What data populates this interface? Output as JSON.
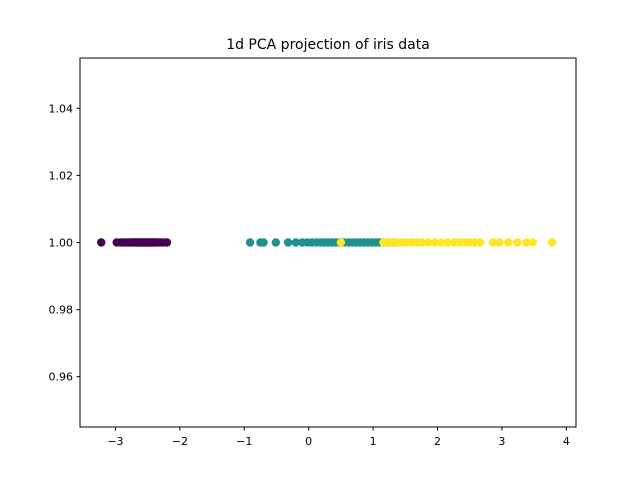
{
  "chart_data": {
    "type": "scatter",
    "title": "1d PCA projection of iris data",
    "xlabel": "",
    "ylabel": "",
    "xlim": [
      -3.55,
      4.15
    ],
    "ylim": [
      0.945,
      1.055
    ],
    "grid": false,
    "legend": "none",
    "x_ticks": [
      -3,
      -2,
      -1,
      0,
      1,
      2,
      3,
      4
    ],
    "x_tick_labels": [
      "−3",
      "−2",
      "−1",
      "0",
      "1",
      "2",
      "3",
      "4"
    ],
    "y_ticks": [
      0.96,
      0.98,
      1.0,
      1.02,
      1.04
    ],
    "y_tick_labels": [
      "0.96",
      "0.98",
      "1.00",
      "1.02",
      "1.04"
    ],
    "series": [
      {
        "color": "#440154",
        "x": [
          -3.22,
          -2.98,
          -2.92,
          -2.88,
          -2.84,
          -2.8,
          -2.76,
          -2.73,
          -2.7,
          -2.68,
          -2.66,
          -2.64,
          -2.62,
          -2.6,
          -2.58,
          -2.56,
          -2.54,
          -2.52,
          -2.5,
          -2.48,
          -2.46,
          -2.44,
          -2.42,
          -2.4,
          -2.37,
          -2.34,
          -2.3,
          -2.26,
          -2.2
        ],
        "y": [
          1,
          1,
          1,
          1,
          1,
          1,
          1,
          1,
          1,
          1,
          1,
          1,
          1,
          1,
          1,
          1,
          1,
          1,
          1,
          1,
          1,
          1,
          1,
          1,
          1,
          1,
          1,
          1,
          1
        ]
      },
      {
        "color": "#21918c",
        "x": [
          -0.91,
          -0.75,
          -0.7,
          -0.51,
          -0.32,
          -0.2,
          -0.1,
          -0.02,
          0.05,
          0.12,
          0.18,
          0.24,
          0.3,
          0.36,
          0.42,
          0.48,
          0.55,
          0.62,
          0.68,
          0.74,
          0.8,
          0.86,
          0.92,
          0.98,
          1.04,
          1.1,
          1.16,
          1.24,
          1.32
        ],
        "y": [
          1,
          1,
          1,
          1,
          1,
          1,
          1,
          1,
          1,
          1,
          1,
          1,
          1,
          1,
          1,
          1,
          1,
          1,
          1,
          1,
          1,
          1,
          1,
          1,
          1,
          1,
          1,
          1,
          1
        ]
      },
      {
        "color": "#fde725",
        "x": [
          0.5,
          1.16,
          1.22,
          1.28,
          1.34,
          1.4,
          1.46,
          1.52,
          1.6,
          1.68,
          1.76,
          1.86,
          1.96,
          2.06,
          2.16,
          2.26,
          2.34,
          2.42,
          2.5,
          2.58,
          2.66,
          2.86,
          2.96,
          3.1,
          3.24,
          3.38,
          3.48,
          3.78
        ],
        "y": [
          1,
          1,
          1,
          1,
          1,
          1,
          1,
          1,
          1,
          1,
          1,
          1,
          1,
          1,
          1,
          1,
          1,
          1,
          1,
          1,
          1,
          1,
          1,
          1,
          1,
          1,
          1,
          1
        ]
      }
    ]
  }
}
